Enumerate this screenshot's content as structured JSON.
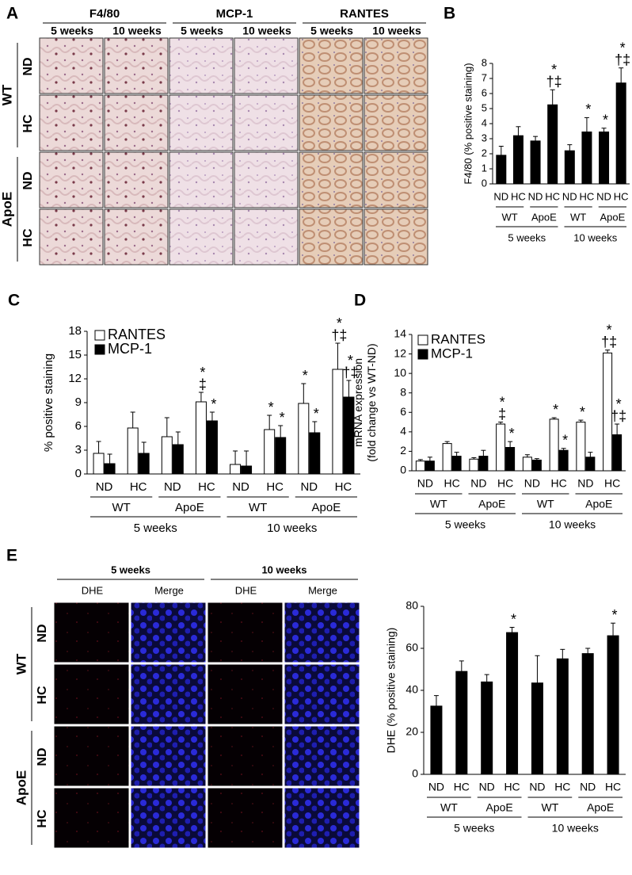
{
  "panel_labels": [
    "A",
    "B",
    "C",
    "D",
    "E"
  ],
  "panel_A": {
    "column_headers": [
      "F4/80",
      "MCP-1",
      "RANTES"
    ],
    "subheaders": [
      "5 weeks",
      "10 weeks",
      "5 weeks",
      "10 weeks",
      "5 weeks",
      "10 weeks"
    ],
    "row_labels": [
      "ND",
      "HC",
      "ND",
      "HC"
    ],
    "row_groups": [
      "WT",
      "ApoE"
    ]
  },
  "panel_E_images": {
    "column_headers": [
      "5 weeks",
      "10 weeks"
    ],
    "subheaders": [
      "DHE",
      "Merge",
      "DHE",
      "Merge"
    ],
    "row_labels": [
      "ND",
      "HC",
      "ND",
      "HC"
    ],
    "row_groups": [
      "WT",
      "ApoE"
    ]
  },
  "chart_data": [
    {
      "type": "bar",
      "ylabel": [
        "F4/80 (% positive staining)"
      ],
      "categories": [
        "ND",
        "HC",
        "ND",
        "HC",
        "ND",
        "HC",
        "ND",
        "HC"
      ],
      "color": "#000000",
      "values": [
        1.9,
        3.2,
        2.85,
        5.25,
        2.2,
        3.45,
        3.45,
        6.7
      ],
      "errors": [
        0.6,
        0.6,
        0.3,
        1.0,
        0.4,
        0.95,
        0.25,
        1.0
      ],
      "sig": [
        [],
        [],
        [],
        [
          "*",
          "†‡"
        ],
        [],
        [
          "*"
        ],
        [
          "*"
        ],
        [
          "*",
          "†‡"
        ]
      ],
      "groups": [
        "WT",
        "ApoE",
        "WT",
        "ApoE"
      ],
      "supergroups": [
        "5 weeks",
        "10 weeks"
      ],
      "ylim": [
        0,
        8
      ],
      "yticks": [
        0,
        1,
        2,
        3,
        4,
        5,
        6,
        7,
        8
      ]
    },
    {
      "type": "bar",
      "ylabel": [
        "% positive staining"
      ],
      "legend": "upper left",
      "categories": [
        "ND",
        "HC",
        "ND",
        "HC",
        "ND",
        "HC",
        "ND",
        "HC"
      ],
      "series": [
        {
          "name": "RANTES",
          "color": "#ffffff",
          "values": [
            2.6,
            5.8,
            4.7,
            9.1,
            1.2,
            5.6,
            8.9,
            13.2
          ],
          "errors": [
            1.5,
            2.0,
            2.4,
            1.2,
            1.7,
            1.8,
            2.5,
            3.3
          ],
          "sig": [
            [],
            [],
            [],
            [
              "*",
              "‡"
            ],
            [],
            [
              "*"
            ],
            [
              "*"
            ],
            [
              "*",
              "†‡"
            ]
          ]
        },
        {
          "name": "MCP-1",
          "color": "#000000",
          "values": [
            1.3,
            2.6,
            3.7,
            6.7,
            1.0,
            4.6,
            5.2,
            9.7
          ],
          "errors": [
            1.2,
            1.4,
            1.6,
            1.1,
            1.9,
            1.5,
            1.4,
            2.1
          ],
          "sig": [
            [],
            [],
            [],
            [
              "*"
            ],
            [],
            [
              "*"
            ],
            [
              "*"
            ],
            [
              "*",
              "†‡"
            ]
          ]
        }
      ],
      "groups": [
        "WT",
        "ApoE",
        "WT",
        "ApoE"
      ],
      "supergroups": [
        "5 weeks",
        "10 weeks"
      ],
      "ylim": [
        0,
        18
      ],
      "yticks": [
        0,
        3,
        6,
        9,
        12,
        15,
        18
      ]
    },
    {
      "type": "bar",
      "ylabel": [
        "mRNA expression",
        "(fold change vs WT-ND)"
      ],
      "legend": "upper left",
      "categories": [
        "ND",
        "HC",
        "ND",
        "HC",
        "ND",
        "HC",
        "ND",
        "HC"
      ],
      "series": [
        {
          "name": "RANTES",
          "color": "#ffffff",
          "values": [
            1.0,
            2.8,
            1.2,
            4.8,
            1.4,
            5.3,
            5.0,
            12.1
          ],
          "errors": [
            0.15,
            0.2,
            0.15,
            0.2,
            0.25,
            0.15,
            0.2,
            0.3
          ],
          "sig": [
            [],
            [],
            [],
            [
              "*",
              "‡"
            ],
            [],
            [
              "*"
            ],
            [
              "*"
            ],
            [
              "*",
              "†‡"
            ]
          ]
        },
        {
          "name": "MCP-1",
          "color": "#000000",
          "values": [
            1.0,
            1.5,
            1.5,
            2.4,
            1.1,
            2.1,
            1.4,
            3.7
          ],
          "errors": [
            0.4,
            0.4,
            0.6,
            0.6,
            0.15,
            0.2,
            0.5,
            1.1
          ],
          "sig": [
            [],
            [],
            [],
            [
              "*"
            ],
            [],
            [
              "*"
            ],
            [],
            [
              "*",
              "†‡"
            ]
          ]
        }
      ],
      "groups": [
        "WT",
        "ApoE",
        "WT",
        "ApoE"
      ],
      "supergroups": [
        "5 weeks",
        "10 weeks"
      ],
      "ylim": [
        0,
        14
      ],
      "yticks": [
        0,
        2,
        4,
        6,
        8,
        10,
        12,
        14
      ]
    },
    {
      "type": "bar",
      "ylabel": [
        "DHE (% positive staining)"
      ],
      "categories": [
        "ND",
        "HC",
        "ND",
        "HC",
        "ND",
        "HC",
        "ND",
        "HC"
      ],
      "color": "#000000",
      "values": [
        32.5,
        49,
        44,
        67.5,
        43.5,
        55,
        57.5,
        66
      ],
      "errors": [
        5,
        5,
        3.5,
        2.5,
        13,
        4.5,
        2.5,
        6
      ],
      "sig": [
        [],
        [],
        [],
        [
          "*"
        ],
        [],
        [],
        [],
        [
          "*"
        ]
      ],
      "groups": [
        "WT",
        "ApoE",
        "WT",
        "ApoE"
      ],
      "supergroups": [
        "5 weeks",
        "10 weeks"
      ],
      "ylim": [
        0,
        80
      ],
      "yticks": [
        0,
        20,
        40,
        60,
        80
      ]
    }
  ]
}
